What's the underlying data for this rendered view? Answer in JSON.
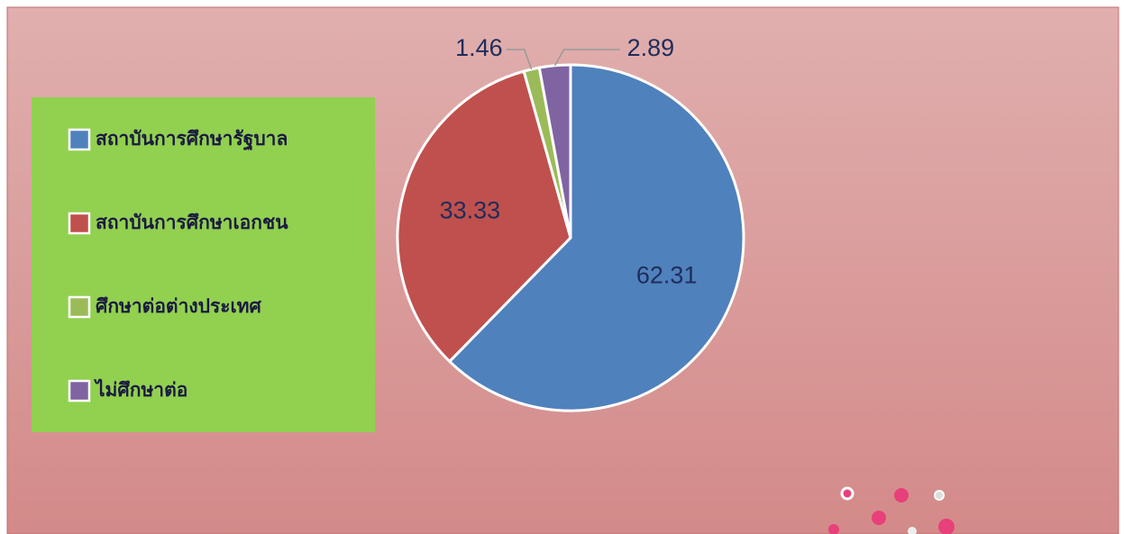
{
  "chart_data": {
    "type": "pie",
    "categories": [
      "สถาบันการศึกษารัฐบาล",
      "สถาบันการศึกษาเอกชน",
      "ศึกษาต่อต่างประเทศ",
      "ไม่ศึกษาต่อ"
    ],
    "values": [
      62.31,
      33.33,
      1.46,
      2.89
    ],
    "colors": [
      "#4f81bd",
      "#c0504d",
      "#9bbb59",
      "#8064a2"
    ],
    "legend": "left"
  }
}
